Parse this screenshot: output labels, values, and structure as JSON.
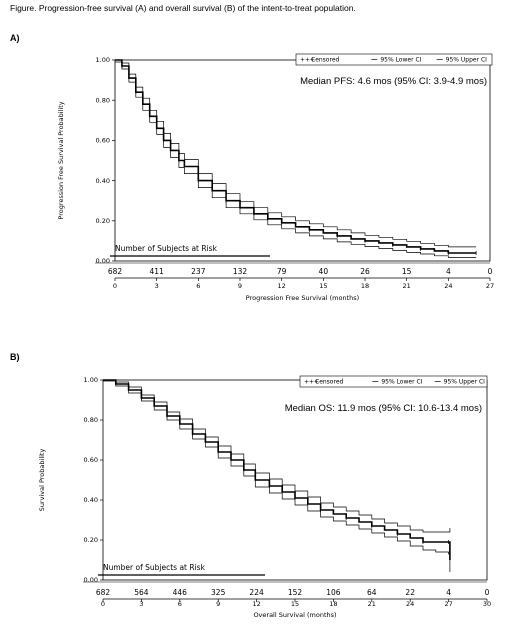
{
  "caption": "Figure. Progression-free survival (A) and overall survival (B) of the intent-to-treat population.",
  "chart_data": [
    {
      "type": "line",
      "panel_label": "A)",
      "xlabel": "Progression Free Survival (months)",
      "ylabel": "Progression Free Survival Probability",
      "xlim": [
        0,
        27
      ],
      "ylim": [
        0,
        1
      ],
      "x_ticks": [
        0,
        3,
        6,
        9,
        12,
        15,
        18,
        21,
        24,
        27
      ],
      "y_ticks": [
        "0.00",
        "0.20",
        "0.40",
        "0.60",
        "0.80",
        "1.00"
      ],
      "legend": [
        "Censored",
        "95% Lower CI",
        "95% Upper CI"
      ],
      "legend_position": "top-right",
      "annotation": "Median PFS: 4.6 mos (95% CI: 3.9-4.9 mos)",
      "risk_table_title": "Number of Subjects at Risk",
      "risk_table": [
        682,
        411,
        237,
        132,
        79,
        40,
        26,
        15,
        4,
        0
      ],
      "series": [
        {
          "name": "Censored",
          "x": [
            0,
            0.5,
            1,
            1.5,
            2,
            2.5,
            3,
            3.5,
            4,
            4.6,
            5,
            6,
            7,
            8,
            9,
            10,
            11,
            12,
            13,
            14,
            15,
            16,
            17,
            18,
            19,
            20,
            21,
            22,
            23,
            24,
            25,
            26
          ],
          "y": [
            1.0,
            0.97,
            0.91,
            0.84,
            0.78,
            0.72,
            0.66,
            0.6,
            0.55,
            0.5,
            0.47,
            0.4,
            0.35,
            0.3,
            0.265,
            0.235,
            0.21,
            0.19,
            0.17,
            0.155,
            0.14,
            0.125,
            0.11,
            0.1,
            0.09,
            0.08,
            0.07,
            0.06,
            0.05,
            0.04,
            0.04,
            0.04
          ]
        },
        {
          "name": "95% Lower CI",
          "x": [
            0,
            0.5,
            1,
            1.5,
            2,
            2.5,
            3,
            3.5,
            4,
            4.6,
            5,
            6,
            7,
            8,
            9,
            10,
            11,
            12,
            13,
            14,
            15,
            16,
            17,
            18,
            19,
            20,
            21,
            22,
            23,
            24,
            25,
            26
          ],
          "y": [
            0.99,
            0.955,
            0.89,
            0.815,
            0.75,
            0.69,
            0.63,
            0.565,
            0.515,
            0.465,
            0.435,
            0.365,
            0.315,
            0.265,
            0.235,
            0.205,
            0.18,
            0.16,
            0.14,
            0.125,
            0.11,
            0.095,
            0.083,
            0.072,
            0.062,
            0.052,
            0.043,
            0.035,
            0.026,
            0.018,
            0.018,
            0.018
          ]
        },
        {
          "name": "95% Upper CI",
          "x": [
            0,
            0.5,
            1,
            1.5,
            2,
            2.5,
            3,
            3.5,
            4,
            4.6,
            5,
            6,
            7,
            8,
            9,
            10,
            11,
            12,
            13,
            14,
            15,
            16,
            17,
            18,
            19,
            20,
            21,
            22,
            23,
            24,
            25,
            26
          ],
          "y": [
            1.0,
            0.985,
            0.93,
            0.865,
            0.81,
            0.75,
            0.695,
            0.635,
            0.585,
            0.535,
            0.505,
            0.435,
            0.385,
            0.335,
            0.295,
            0.265,
            0.24,
            0.22,
            0.2,
            0.185,
            0.17,
            0.155,
            0.14,
            0.128,
            0.118,
            0.108,
            0.098,
            0.088,
            0.078,
            0.07,
            0.07,
            0.07
          ]
        }
      ]
    },
    {
      "type": "line",
      "panel_label": "B)",
      "xlabel": "Overall Survival (months)",
      "ylabel": "Survival Probability",
      "xlim": [
        0,
        30
      ],
      "ylim": [
        0,
        1
      ],
      "x_ticks": [
        0,
        3,
        6,
        9,
        12,
        15,
        18,
        21,
        24,
        27,
        30
      ],
      "y_ticks": [
        "0.00",
        "0.20",
        "0.40",
        "0.60",
        "0.80",
        "1.00"
      ],
      "legend": [
        "Censored",
        "95% Lower CI",
        "95% Upper CI"
      ],
      "legend_position": "top-right",
      "annotation": "Median OS: 11.9 mos (95% CI: 10.6-13.4 mos)",
      "risk_table_title": "Number of Subjects at Risk",
      "risk_table": [
        682,
        564,
        446,
        325,
        224,
        152,
        106,
        64,
        22,
        4,
        0
      ],
      "series": [
        {
          "name": "Censored",
          "x": [
            0,
            1,
            2,
            3,
            4,
            5,
            6,
            7,
            8,
            9,
            10,
            11,
            11.9,
            13,
            14,
            15,
            16,
            17,
            18,
            19,
            20,
            21,
            22,
            23,
            24,
            25,
            26,
            27,
            27.1
          ],
          "y": [
            1.0,
            0.98,
            0.95,
            0.91,
            0.87,
            0.82,
            0.78,
            0.73,
            0.69,
            0.64,
            0.6,
            0.55,
            0.5,
            0.47,
            0.44,
            0.41,
            0.38,
            0.35,
            0.33,
            0.31,
            0.29,
            0.27,
            0.25,
            0.23,
            0.21,
            0.19,
            0.19,
            0.19,
            0.1
          ]
        },
        {
          "name": "95% Lower CI",
          "x": [
            0,
            1,
            2,
            3,
            4,
            5,
            6,
            7,
            8,
            9,
            10,
            11,
            11.9,
            13,
            14,
            15,
            16,
            17,
            18,
            19,
            20,
            21,
            22,
            23,
            24,
            25,
            26,
            27,
            27.1
          ],
          "y": [
            0.995,
            0.97,
            0.935,
            0.895,
            0.85,
            0.8,
            0.755,
            0.705,
            0.665,
            0.61,
            0.57,
            0.52,
            0.465,
            0.435,
            0.405,
            0.375,
            0.345,
            0.315,
            0.295,
            0.275,
            0.255,
            0.235,
            0.215,
            0.195,
            0.17,
            0.15,
            0.14,
            0.13,
            0.04
          ]
        },
        {
          "name": "95% Upper CI",
          "x": [
            0,
            1,
            2,
            3,
            4,
            5,
            6,
            7,
            8,
            9,
            10,
            11,
            11.9,
            13,
            14,
            15,
            16,
            17,
            18,
            19,
            20,
            21,
            22,
            23,
            24,
            25,
            26,
            27,
            27.1
          ],
          "y": [
            1.0,
            0.99,
            0.965,
            0.925,
            0.89,
            0.84,
            0.805,
            0.755,
            0.715,
            0.67,
            0.63,
            0.58,
            0.535,
            0.505,
            0.475,
            0.445,
            0.415,
            0.385,
            0.365,
            0.345,
            0.325,
            0.305,
            0.285,
            0.27,
            0.25,
            0.24,
            0.24,
            0.24,
            0.26
          ]
        }
      ]
    }
  ]
}
